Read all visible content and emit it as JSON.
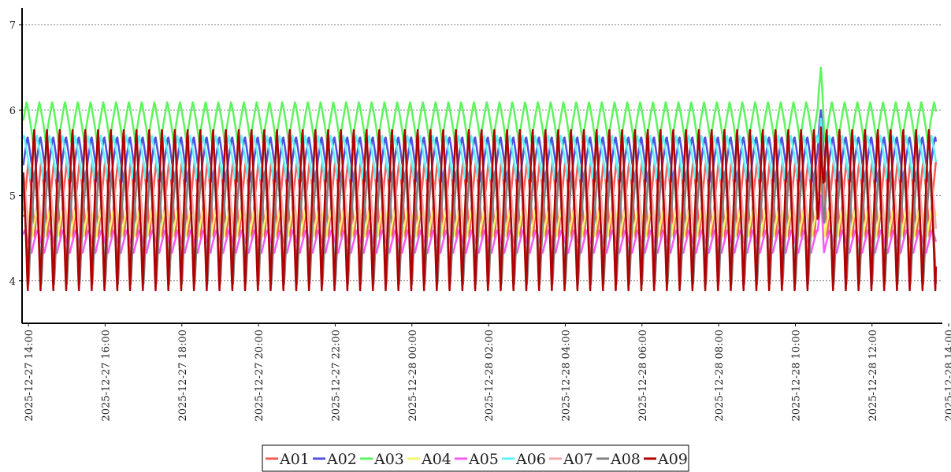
{
  "chart_data": {
    "type": "line",
    "title": "",
    "xlabel": "",
    "ylabel": "",
    "x_range": [
      "2025-12-27 13:50",
      "2025-12-28 13:50"
    ],
    "x_ticks": [
      "2025-12-27 14:00",
      "2025-12-27 16:00",
      "2025-12-27 18:00",
      "2025-12-27 20:00",
      "2025-12-27 22:00",
      "2025-12-28 00:00",
      "2025-12-28 02:00",
      "2025-12-28 04:00",
      "2025-12-28 06:00",
      "2025-12-28 08:00",
      "2025-12-28 10:00",
      "2025-12-28 12:00",
      "2025-12-28 14:00"
    ],
    "ylim": [
      3.5,
      7.2
    ],
    "y_ticks": [
      4,
      5,
      6,
      7
    ],
    "grid": "horizontal dashed",
    "legend_position": "bottom-center",
    "oscillation_period_minutes": 20,
    "series": [
      {
        "name": "A01",
        "color": "#f55a5a",
        "range": [
          4.5,
          5.4
        ],
        "spike": 5.9
      },
      {
        "name": "A02",
        "color": "#5050e0",
        "range": [
          5.1,
          5.7
        ],
        "spike": 6.0
      },
      {
        "name": "A03",
        "color": "#5cf55c",
        "range": [
          5.6,
          6.1
        ],
        "spike": 6.5
      },
      {
        "name": "A04",
        "color": "#f5f56a",
        "range": [
          4.5,
          4.9
        ],
        "spike": 5.2
      },
      {
        "name": "A05",
        "color": "#f55af5",
        "range": [
          4.3,
          4.6
        ],
        "spike": 5.0
      },
      {
        "name": "A06",
        "color": "#5cf5f5",
        "range": [
          5.2,
          5.7
        ],
        "spike": 5.9
      },
      {
        "name": "A07",
        "color": "#f5aaaa",
        "range": [
          4.4,
          5.3
        ],
        "spike": 5.7
      },
      {
        "name": "A08",
        "color": "#808080",
        "range": [
          3.9,
          5.3
        ],
        "spike": 5.6
      },
      {
        "name": "A09",
        "color": "#b00000",
        "range": [
          3.8,
          5.8
        ],
        "spike": 5.8
      }
    ]
  }
}
